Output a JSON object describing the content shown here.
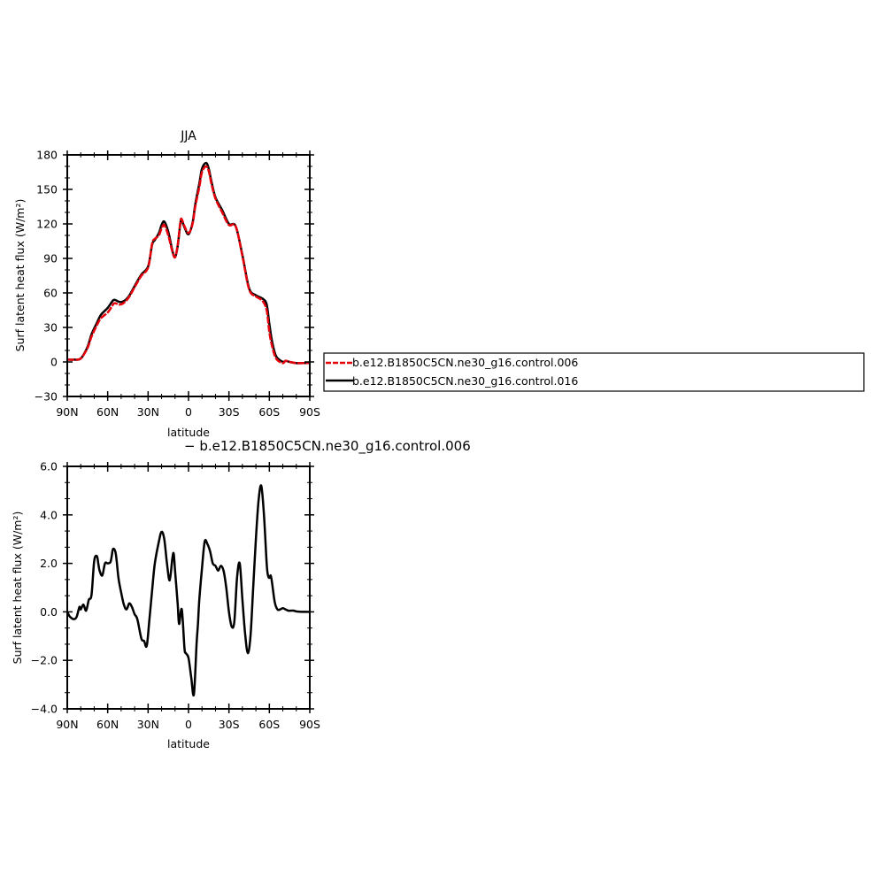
{
  "chart_data": [
    {
      "type": "line",
      "title": "JJA",
      "xlabel": "latitude",
      "ylabel": "Surf latent heat flux (W/m²)",
      "xlim": [
        90,
        -90
      ],
      "ylim": [
        -30,
        180
      ],
      "xticks": [
        90,
        60,
        30,
        0,
        -30,
        -60,
        -90
      ],
      "xtick_labels": [
        "90N",
        "60N",
        "30N",
        "0",
        "30S",
        "60S",
        "90S"
      ],
      "yticks": [
        -30,
        0,
        30,
        60,
        90,
        120,
        150,
        180
      ],
      "ytick_labels": [
        "−30",
        "0",
        "30",
        "60",
        "90",
        "120",
        "150",
        "180"
      ],
      "legend": "right, outside plot",
      "series": [
        {
          "name": "b.e12.B1850C5CN.ne30_g16.control.006",
          "color": "#e8000b",
          "style": "dashed",
          "x": [
            90,
            85,
            80,
            75,
            72,
            68,
            65,
            60,
            57,
            55,
            50,
            45,
            40,
            35,
            30,
            27,
            25,
            22,
            20,
            18,
            15,
            12,
            10,
            8,
            6,
            5,
            3,
            0,
            -3,
            -5,
            -8,
            -10,
            -13,
            -15,
            -17,
            -20,
            -25,
            -30,
            -35,
            -40,
            -45,
            -50,
            -55,
            -58,
            -60,
            -62,
            -65,
            -70,
            -72,
            -75,
            -80,
            -85,
            -90
          ],
          "y": [
            2,
            2,
            3,
            12,
            22,
            32,
            38,
            43,
            48,
            51,
            50,
            55,
            65,
            75,
            82,
            103,
            107,
            110,
            116,
            119,
            110,
            96,
            91,
            102,
            122,
            124,
            118,
            112,
            120,
            135,
            152,
            165,
            170,
            166,
            155,
            142,
            130,
            119,
            118,
            92,
            63,
            57,
            53,
            45,
            26,
            14,
            3,
            -1,
            1,
            0,
            -1,
            -1,
            -1
          ]
        },
        {
          "name": "b.e12.B1850C5CN.ne30_g16.control.016",
          "color": "#000000",
          "style": "solid",
          "x": [
            90,
            85,
            80,
            75,
            72,
            68,
            65,
            60,
            57,
            55,
            50,
            45,
            40,
            35,
            30,
            27,
            25,
            22,
            20,
            18,
            15,
            12,
            10,
            8,
            6,
            5,
            3,
            0,
            -3,
            -5,
            -8,
            -10,
            -13,
            -15,
            -17,
            -20,
            -25,
            -30,
            -35,
            -40,
            -45,
            -50,
            -55,
            -58,
            -60,
            -62,
            -65,
            -70,
            -72,
            -75,
            -80,
            -85,
            -90
          ],
          "y": [
            2,
            2,
            3,
            13,
            24,
            34,
            41,
            47,
            52,
            54,
            52,
            56,
            66,
            76,
            83,
            102,
            106,
            112,
            119,
            122,
            113,
            97,
            91,
            101,
            121,
            123,
            117,
            111,
            121,
            137,
            155,
            168,
            173,
            168,
            157,
            143,
            132,
            120,
            118,
            93,
            64,
            58,
            55,
            50,
            33,
            18,
            5,
            0,
            1,
            0,
            -1,
            -1,
            -1
          ]
        }
      ]
    },
    {
      "type": "line",
      "title": "− b.e12.B1850C5CN.ne30_g16.control.006",
      "xlabel": "latitude",
      "ylabel": "Surf latent heat flux (W/m²)",
      "xlim": [
        90,
        -90
      ],
      "ylim": [
        -4,
        6
      ],
      "xticks": [
        90,
        60,
        30,
        0,
        -30,
        -60,
        -90
      ],
      "xtick_labels": [
        "90N",
        "60N",
        "30N",
        "0",
        "30S",
        "60S",
        "90S"
      ],
      "yticks": [
        -4,
        -2,
        0,
        2,
        4,
        6
      ],
      "ytick_labels": [
        "−4.0",
        "−2.0",
        "0.0",
        "2.0",
        "4.0",
        "6.0"
      ],
      "series": [
        {
          "color": "#000000",
          "style": "solid",
          "x": [
            90,
            88,
            85,
            83,
            81,
            80,
            78,
            76,
            74,
            72,
            70,
            68,
            67,
            66,
            64,
            62,
            60,
            58,
            57,
            56,
            54,
            52,
            50,
            48,
            46,
            44,
            42,
            40,
            38,
            35,
            33,
            31,
            29,
            27,
            25,
            22,
            20,
            18,
            16,
            14,
            12,
            11,
            10,
            8,
            7,
            5,
            3,
            2,
            0,
            -2,
            -4,
            -6,
            -7,
            -8,
            -10,
            -12,
            -14,
            -16,
            -18,
            -20,
            -22,
            -24,
            -26,
            -28,
            -30,
            -32,
            -34,
            -36,
            -38,
            -40,
            -42,
            -44,
            -46,
            -48,
            -50,
            -52,
            -54,
            -56,
            -58,
            -59,
            -60,
            -61,
            -62,
            -64,
            -66,
            -68,
            -70,
            -72,
            -74,
            -76,
            -78,
            -80,
            -85,
            -90
          ],
          "y": [
            0.0,
            -0.2,
            -0.3,
            -0.2,
            0.2,
            0.1,
            0.3,
            0.05,
            0.5,
            0.7,
            2.1,
            2.3,
            2.0,
            1.7,
            1.5,
            2.0,
            2.0,
            2.05,
            2.3,
            2.6,
            2.4,
            1.4,
            0.8,
            0.3,
            0.1,
            0.35,
            0.2,
            -0.1,
            -0.3,
            -1.1,
            -1.2,
            -1.4,
            -0.3,
            0.9,
            2.0,
            2.9,
            3.3,
            3.0,
            2.0,
            1.3,
            2.2,
            2.4,
            1.7,
            0.3,
            -0.5,
            0.1,
            -1.5,
            -1.7,
            -1.9,
            -2.7,
            -3.4,
            -1.3,
            -0.5,
            0.5,
            1.8,
            2.9,
            2.8,
            2.5,
            2.0,
            1.9,
            1.7,
            1.9,
            1.7,
            1.0,
            0.0,
            -0.6,
            -0.4,
            1.4,
            2.0,
            0.5,
            -0.9,
            -1.7,
            -1.0,
            1.0,
            3.0,
            4.6,
            5.2,
            4.0,
            2.0,
            1.5,
            1.4,
            1.5,
            1.2,
            0.4,
            0.1,
            0.1,
            0.15,
            0.1,
            0.05,
            0.05,
            0.05,
            0.02,
            0.0,
            0.0
          ]
        }
      ]
    }
  ]
}
